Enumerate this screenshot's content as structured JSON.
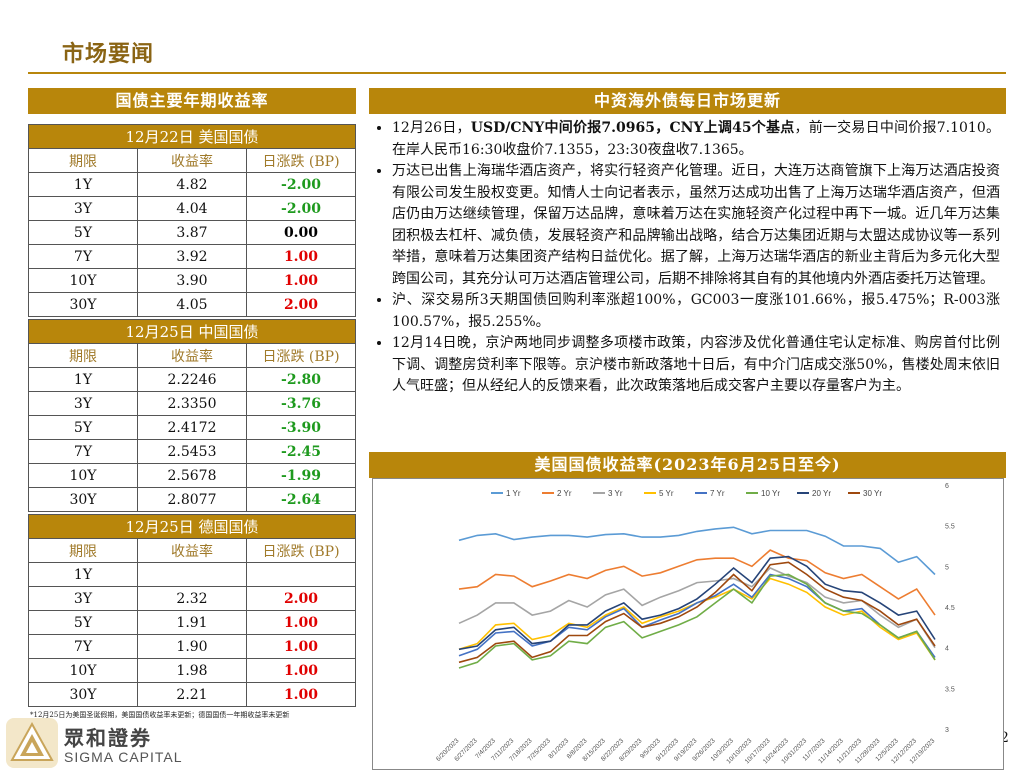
{
  "page": {
    "title": "市场要闻",
    "number": "2"
  },
  "left": {
    "header": "国债主要年期收益率",
    "columns": [
      "期限",
      "收益率",
      "日涨跌 (BP)"
    ],
    "sections": [
      {
        "title": "12月22日  美国国债",
        "rows": [
          {
            "term": "1Y",
            "yield": "4.82",
            "chg": "-2.00",
            "dir": "down"
          },
          {
            "term": "3Y",
            "yield": "4.04",
            "chg": "-2.00",
            "dir": "down"
          },
          {
            "term": "5Y",
            "yield": "3.87",
            "chg": "0.00",
            "dir": "flat"
          },
          {
            "term": "7Y",
            "yield": "3.92",
            "chg": "1.00",
            "dir": "up"
          },
          {
            "term": "10Y",
            "yield": "3.90",
            "chg": "1.00",
            "dir": "up"
          },
          {
            "term": "30Y",
            "yield": "4.05",
            "chg": "2.00",
            "dir": "up"
          }
        ]
      },
      {
        "title": "12月25日  中国国债",
        "rows": [
          {
            "term": "1Y",
            "yield": "2.2246",
            "chg": "-2.80",
            "dir": "down"
          },
          {
            "term": "3Y",
            "yield": "2.3350",
            "chg": "-3.76",
            "dir": "down"
          },
          {
            "term": "5Y",
            "yield": "2.4172",
            "chg": "-3.90",
            "dir": "down"
          },
          {
            "term": "7Y",
            "yield": "2.5453",
            "chg": "-2.45",
            "dir": "down"
          },
          {
            "term": "10Y",
            "yield": "2.5678",
            "chg": "-1.99",
            "dir": "down"
          },
          {
            "term": "30Y",
            "yield": "2.8077",
            "chg": "-2.64",
            "dir": "down"
          }
        ]
      },
      {
        "title": "12月25日  德国国债",
        "rows": [
          {
            "term": "1Y",
            "yield": "",
            "chg": "",
            "dir": "flat"
          },
          {
            "term": "3Y",
            "yield": "2.32",
            "chg": "2.00",
            "dir": "up"
          },
          {
            "term": "5Y",
            "yield": "1.91",
            "chg": "1.00",
            "dir": "up"
          },
          {
            "term": "7Y",
            "yield": "1.90",
            "chg": "1.00",
            "dir": "up"
          },
          {
            "term": "10Y",
            "yield": "1.98",
            "chg": "1.00",
            "dir": "up"
          },
          {
            "term": "30Y",
            "yield": "2.21",
            "chg": "1.00",
            "dir": "up"
          }
        ]
      }
    ],
    "footnote": "*12月25日为美国圣诞假期，美国国债收益率未更新；德国国债一年期收益率未更新"
  },
  "brand": {
    "cn": "眾和證券",
    "en": "SIGMA CAPITAL"
  },
  "right": {
    "header": "中资海外债每日市场更新",
    "news": [
      {
        "pre": "12月26日，",
        "bold": "USD/CNY中间价报7.0965，CNY上调45个基点",
        "post": "，前一交易日中间价报7.1010。在岸人民币16:30收盘价7.1355，23:30夜盘收7.1365。"
      },
      {
        "pre": "万达已出售上海瑞华酒店资产，将实行轻资产化管理。近日，大连万达商管旗下上海万达酒店投资有限公司发生股权变更。知情人士向记者表示，虽然万达成功出售了上海万达瑞华酒店资产，但酒店仍由万达继续管理，保留万达品牌，意味着万达在实施轻资产化过程中再下一城。近几年万达集团积极去杠杆、减负债，发展轻资产和品牌输出战略，结合万达集团近期与太盟达成协议等一系列举措，意味着万达集团资产结构日益优化。据了解，上海万达瑞华酒店的新业主背后为多元化大型跨国公司，其充分认可万达酒店管理公司，后期不排除将其自有的其他境内外酒店委托万达管理。",
        "bold": "",
        "post": ""
      },
      {
        "pre": "沪、深交易所3天期国债回购利率涨超100%，GC003一度涨101.66%，报5.475%；R-003涨100.57%，报5.255%。",
        "bold": "",
        "post": ""
      },
      {
        "pre": "12月14日晚，京沪两地同步调整多项楼市政策，内容涉及优化普通住宅认定标准、购房首付比例下调、调整房贷利率下限等。京沪楼市新政落地十日后，有中介门店成交涨50%，售楼处周末依旧人气旺盛；但从经纪人的反馈来看，此次政策落地后成交客户主要以存量客户为主。",
        "bold": "",
        "post": ""
      }
    ],
    "chart_header": "美国国债收益率(2023年6月25日至今)"
  },
  "chart_data": {
    "type": "line",
    "y_axis_side": "right",
    "ylim": [
      3,
      6
    ],
    "yticks": [
      "6",
      "5.5",
      "5",
      "4.5",
      "4",
      "3.5",
      "3"
    ],
    "x": [
      "6/20/2023",
      "6/27/2023",
      "7/4/2023",
      "7/11/2023",
      "7/18/2023",
      "7/25/2023",
      "8/1/2023",
      "8/8/2023",
      "8/15/2023",
      "8/22/2023",
      "8/29/2023",
      "9/5/2023",
      "9/12/2023",
      "9/19/2023",
      "9/26/2023",
      "10/3/2023",
      "10/10/2023",
      "10/17/2023",
      "10/24/2023",
      "10/31/2023",
      "11/7/2023",
      "11/14/2023",
      "11/21/2023",
      "11/28/2023",
      "12/5/2023",
      "12/12/2023",
      "12/19/2023"
    ],
    "series": [
      {
        "name": "1 Yr",
        "color": "#5b9bd5",
        "values": [
          5.32,
          5.38,
          5.4,
          5.33,
          5.36,
          5.38,
          5.38,
          5.36,
          5.39,
          5.4,
          5.36,
          5.36,
          5.38,
          5.43,
          5.46,
          5.48,
          5.4,
          5.44,
          5.44,
          5.44,
          5.37,
          5.25,
          5.25,
          5.22,
          5.05,
          5.12,
          4.9
        ]
      },
      {
        "name": "2 Yr",
        "color": "#ed7d31",
        "values": [
          4.72,
          4.75,
          4.9,
          4.88,
          4.75,
          4.82,
          4.9,
          4.85,
          4.95,
          5.0,
          4.88,
          4.92,
          5.0,
          5.08,
          5.1,
          5.1,
          5.0,
          5.2,
          5.1,
          5.07,
          4.92,
          4.85,
          4.9,
          4.75,
          4.6,
          4.72,
          4.4
        ]
      },
      {
        "name": "3 Yr",
        "color": "#a5a5a5",
        "values": [
          4.3,
          4.4,
          4.55,
          4.55,
          4.4,
          4.45,
          4.58,
          4.5,
          4.65,
          4.72,
          4.52,
          4.62,
          4.7,
          4.8,
          4.82,
          4.85,
          4.75,
          4.98,
          4.88,
          4.8,
          4.62,
          4.55,
          4.58,
          4.4,
          4.25,
          4.35,
          4.0
        ]
      },
      {
        "name": "5 Yr",
        "color": "#ffc000",
        "values": [
          3.98,
          4.05,
          4.28,
          4.3,
          4.1,
          4.15,
          4.3,
          4.25,
          4.4,
          4.5,
          4.3,
          4.38,
          4.45,
          4.55,
          4.62,
          4.72,
          4.6,
          4.85,
          4.78,
          4.68,
          4.5,
          4.4,
          4.45,
          4.25,
          4.1,
          4.18,
          3.85
        ]
      },
      {
        "name": "7 Yr",
        "color": "#4472c4",
        "values": [
          3.9,
          3.98,
          4.18,
          4.2,
          4.02,
          4.08,
          4.25,
          4.22,
          4.38,
          4.48,
          4.25,
          4.34,
          4.42,
          4.55,
          4.64,
          4.78,
          4.62,
          4.9,
          4.85,
          4.75,
          4.55,
          4.45,
          4.48,
          4.28,
          4.12,
          4.2,
          3.88
        ]
      },
      {
        "name": "10 Yr",
        "color": "#70ad47",
        "values": [
          3.75,
          3.82,
          4.02,
          4.05,
          3.85,
          3.9,
          4.08,
          4.05,
          4.25,
          4.32,
          4.12,
          4.2,
          4.28,
          4.38,
          4.55,
          4.72,
          4.55,
          4.88,
          4.9,
          4.78,
          4.55,
          4.45,
          4.42,
          4.28,
          4.12,
          4.2,
          3.85
        ]
      },
      {
        "name": "20 Yr",
        "color": "#264478",
        "values": [
          3.98,
          4.02,
          4.22,
          4.25,
          4.05,
          4.08,
          4.28,
          4.28,
          4.45,
          4.55,
          4.35,
          4.4,
          4.48,
          4.6,
          4.78,
          4.98,
          4.8,
          5.1,
          5.12,
          5.0,
          4.78,
          4.7,
          4.68,
          4.55,
          4.4,
          4.45,
          4.1
        ]
      },
      {
        "name": "30 Yr",
        "color": "#9e480e",
        "values": [
          3.82,
          3.88,
          4.05,
          4.08,
          3.88,
          3.95,
          4.15,
          4.15,
          4.32,
          4.42,
          4.25,
          4.3,
          4.38,
          4.5,
          4.68,
          4.9,
          4.7,
          5.02,
          5.05,
          4.9,
          4.72,
          4.62,
          4.58,
          4.45,
          4.28,
          4.35,
          4.02
        ]
      }
    ]
  }
}
